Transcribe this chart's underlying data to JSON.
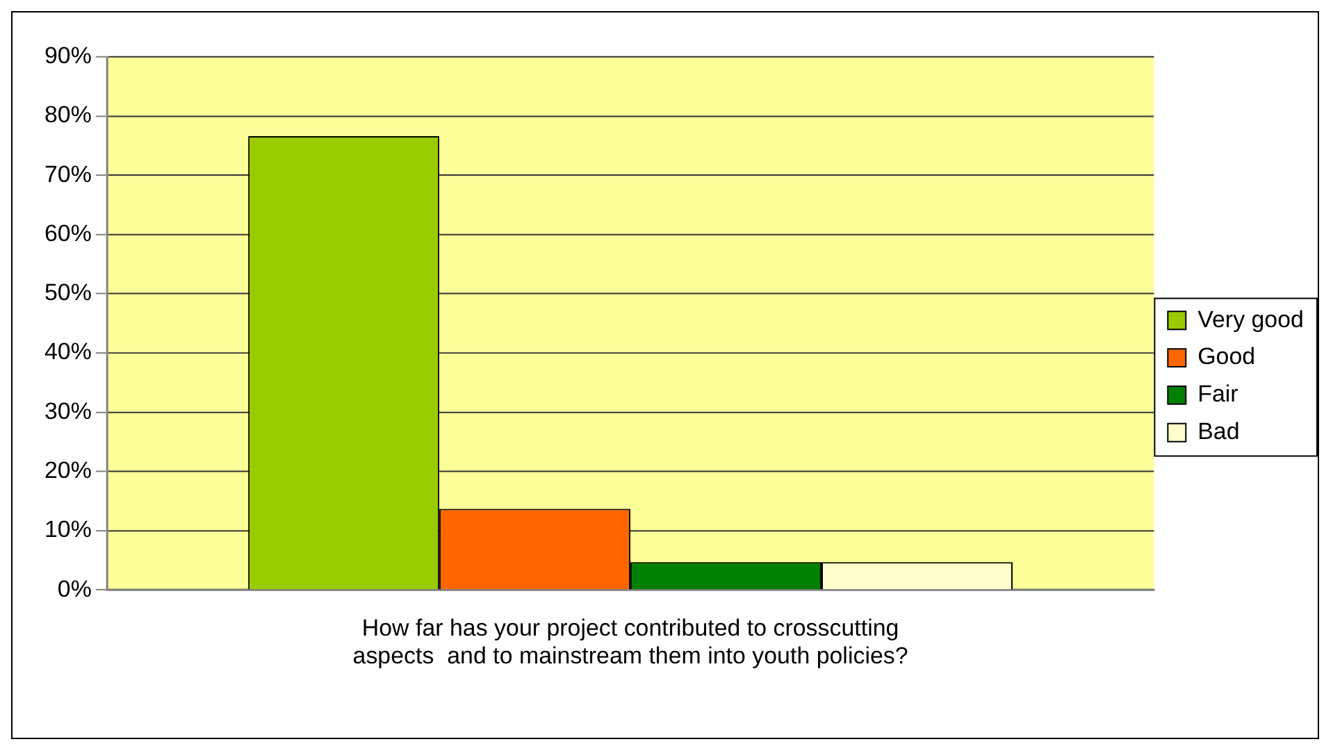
{
  "chart_data": {
    "type": "bar",
    "categories": [
      "How far has your project contributed to crosscutting aspects  and to mainstream them into youth policies?"
    ],
    "series": [
      {
        "name": "Very good",
        "color": "#99cc00",
        "values": [
          76.6
        ]
      },
      {
        "name": "Good",
        "color": "#ff6600",
        "values": [
          13.7
        ]
      },
      {
        "name": "Fair",
        "color": "#008000",
        "values": [
          4.7
        ]
      },
      {
        "name": "Bad",
        "color": "#ffffcc",
        "values": [
          4.7
        ]
      }
    ],
    "ylim": [
      0,
      90
    ],
    "yticks": [
      {
        "value": 0,
        "label": "0%"
      },
      {
        "value": 10,
        "label": "10%"
      },
      {
        "value": 20,
        "label": "20%"
      },
      {
        "value": 30,
        "label": "30%"
      },
      {
        "value": 40,
        "label": "40%"
      },
      {
        "value": 50,
        "label": "50%"
      },
      {
        "value": 60,
        "label": "60%"
      },
      {
        "value": 70,
        "label": "70%"
      },
      {
        "value": 80,
        "label": "80%"
      },
      {
        "value": 90,
        "label": "90%"
      }
    ],
    "grid": "y",
    "legend": "right"
  }
}
